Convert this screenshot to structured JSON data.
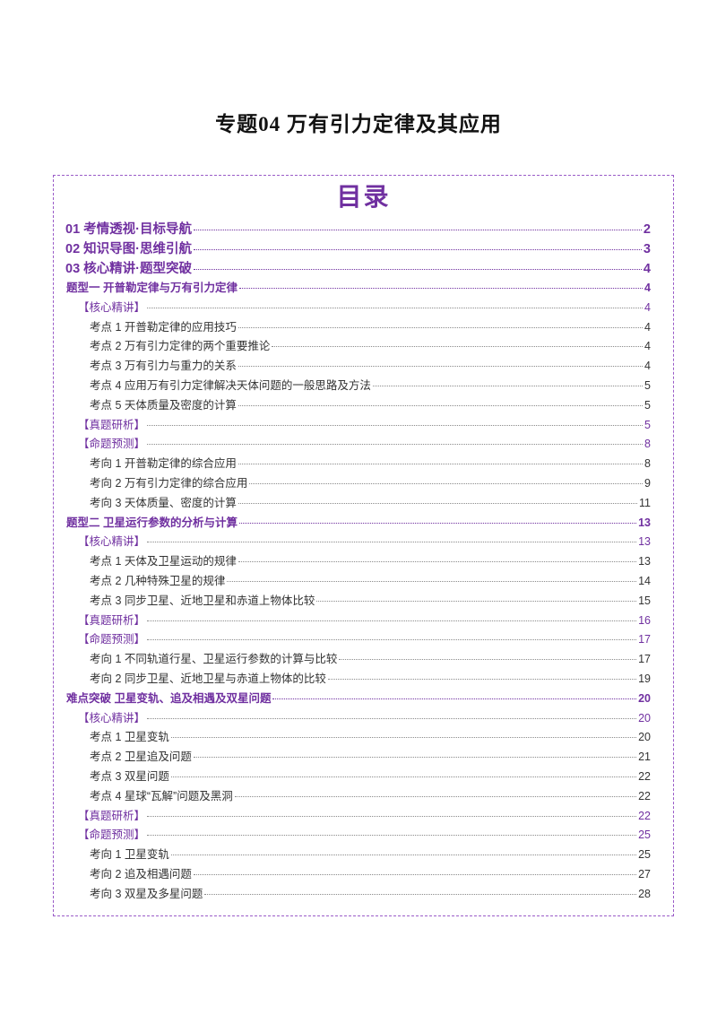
{
  "document": {
    "title": "专题04  万有引力定律及其应用",
    "toc_heading": "目录"
  },
  "toc": [
    {
      "level": 1,
      "text": "01 考情透视·目标导航",
      "page": "2"
    },
    {
      "level": 1,
      "text": "02 知识导图·思维引航",
      "page": "3"
    },
    {
      "level": 1,
      "text": "03 核心精讲·题型突破",
      "page": "4"
    },
    {
      "level": 2,
      "text": "题型一    开普勒定律与万有引力定律",
      "page": "4"
    },
    {
      "level": 3,
      "text": "【核心精讲】",
      "page": "4"
    },
    {
      "level": 4,
      "text": "考点 1  开普勒定律的应用技巧",
      "page": "4"
    },
    {
      "level": 4,
      "text": "考点 2  万有引力定律的两个重要推论",
      "page": "4"
    },
    {
      "level": 4,
      "text": "考点 3   万有引力与重力的关系",
      "page": "4"
    },
    {
      "level": 4,
      "text": "考点 4  应用万有引力定律解决天体问题的一般思路及方法",
      "page": "5"
    },
    {
      "level": 4,
      "text": "考点 5   天体质量及密度的计算",
      "page": "5"
    },
    {
      "level": 3,
      "text": "【真题研析】",
      "page": "5"
    },
    {
      "level": 3,
      "text": "【命题预测】",
      "page": "8"
    },
    {
      "level": 4,
      "text": "考向 1    开普勒定律的综合应用",
      "page": "8"
    },
    {
      "level": 4,
      "text": "考向 2    万有引力定律的综合应用",
      "page": "9"
    },
    {
      "level": 4,
      "text": "考向 3    天体质量、密度的计算",
      "page": "11"
    },
    {
      "level": 2,
      "text": "题型二    卫星运行参数的分析与计算",
      "page": "13"
    },
    {
      "level": 3,
      "text": "【核心精讲】",
      "page": "13"
    },
    {
      "level": 4,
      "text": "考点 1  天体及卫星运动的规律",
      "page": "13"
    },
    {
      "level": 4,
      "text": "考点 2  几种特殊卫星的规律",
      "page": "14"
    },
    {
      "level": 4,
      "text": "考点 3   同步卫星、近地卫星和赤道上物体比较",
      "page": "15"
    },
    {
      "level": 3,
      "text": "【真题研析】",
      "page": "16"
    },
    {
      "level": 3,
      "text": "【命题预测】",
      "page": "17"
    },
    {
      "level": 4,
      "text": "考向 1  不同轨道行星、卫星运行参数的计算与比较",
      "page": "17"
    },
    {
      "level": 4,
      "text": "考向 2  同步卫星、近地卫星与赤道上物体的比较",
      "page": "19"
    },
    {
      "level": 2,
      "text": "难点突破    卫星变轨、追及相遇及双星问题",
      "page": "20"
    },
    {
      "level": 3,
      "text": "【核心精讲】",
      "page": "20"
    },
    {
      "level": 4,
      "text": "考点 1 卫星变轨",
      "page": "20"
    },
    {
      "level": 4,
      "text": "考点 2  卫星追及问题",
      "page": "21"
    },
    {
      "level": 4,
      "text": "考点 3   双星问题",
      "page": "22"
    },
    {
      "level": 4,
      "text": "考点 4   星球“瓦解”问题及黑洞",
      "page": "22"
    },
    {
      "level": 3,
      "text": "【真题研析】",
      "page": "22"
    },
    {
      "level": 3,
      "text": "【命题预测】",
      "page": "25"
    },
    {
      "level": 4,
      "text": "考向 1    卫星变轨",
      "page": "25"
    },
    {
      "level": 4,
      "text": "考向 2    追及相遇问题",
      "page": "27"
    },
    {
      "level": 4,
      "text": "考向 3    双星及多星问题",
      "page": "28"
    }
  ]
}
